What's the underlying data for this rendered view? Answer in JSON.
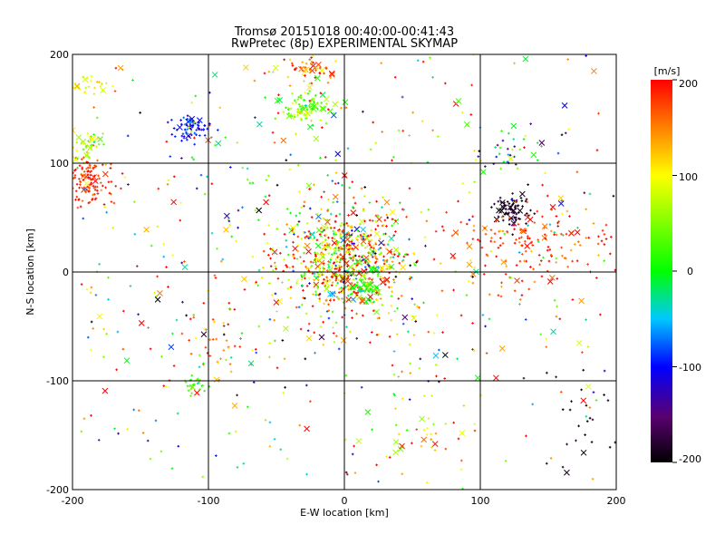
{
  "chart_data": {
    "type": "scatter",
    "title": "Tromsø 20151018 00:40:00-00:41:43",
    "subtitle": "RwPretec (8p) EXPERIMENTAL SKYMAP",
    "xlabel": "E-W location [km]",
    "ylabel": "N-S location [km]",
    "xlim": [
      -200,
      200
    ],
    "ylim": [
      -200,
      200
    ],
    "x_ticks": [
      "-200",
      "-100",
      "0",
      "100",
      "200"
    ],
    "y_ticks": [
      "-200",
      "-100",
      "0",
      "100",
      "200"
    ],
    "grid": true,
    "colorbar": {
      "label": "[m/s]",
      "range": [
        -200,
        200
      ],
      "ticks": [
        "200",
        "100",
        "0",
        "-100",
        "-200"
      ],
      "colormap": "rainbow (black=-200, blue=-100, green=0, yellow=100, red=200)"
    },
    "markers": [
      "+",
      "x"
    ],
    "clusters": [
      {
        "x": 0,
        "y": 10,
        "sx": 25,
        "sy": 25,
        "n": 700,
        "v": 110,
        "vs": 110
      },
      {
        "x": 15,
        "y": -15,
        "sx": 6,
        "sy": 5,
        "n": 60,
        "v": 10,
        "vs": 20
      },
      {
        "x": -30,
        "y": 152,
        "sx": 9,
        "sy": 7,
        "n": 90,
        "v": 40,
        "vs": 35
      },
      {
        "x": -30,
        "y": 185,
        "sx": 12,
        "sy": 8,
        "n": 60,
        "v": 150,
        "vs": 40
      },
      {
        "x": -113,
        "y": 133,
        "sx": 7,
        "sy": 6,
        "n": 70,
        "v": -100,
        "vs": 20
      },
      {
        "x": -187,
        "y": 85,
        "sx": 9,
        "sy": 12,
        "n": 120,
        "v": 185,
        "vs": 20
      },
      {
        "x": -190,
        "y": 118,
        "sx": 8,
        "sy": 8,
        "n": 50,
        "v": 60,
        "vs": 40
      },
      {
        "x": -190,
        "y": 173,
        "sx": 8,
        "sy": 5,
        "n": 25,
        "v": 100,
        "vs": 20
      },
      {
        "x": 123,
        "y": 57,
        "sx": 6,
        "sy": 8,
        "n": 80,
        "v": -190,
        "vs": 15
      },
      {
        "x": 140,
        "y": 25,
        "sx": 30,
        "sy": 18,
        "n": 160,
        "v": 180,
        "vs": 30
      },
      {
        "x": 125,
        "y": 115,
        "sx": 15,
        "sy": 10,
        "n": 35,
        "v": -60,
        "vs": 80
      },
      {
        "x": -110,
        "y": -105,
        "sx": 5,
        "sy": 4,
        "n": 25,
        "v": 20,
        "vs": 20
      },
      {
        "x": -90,
        "y": -70,
        "sx": 10,
        "sy": 15,
        "n": 30,
        "v": 170,
        "vs": 30
      },
      {
        "x": 60,
        "y": -150,
        "sx": 15,
        "sy": 15,
        "n": 30,
        "v": 120,
        "vs": 60
      },
      {
        "x": 175,
        "y": -130,
        "sx": 15,
        "sy": 25,
        "n": 25,
        "v": -190,
        "vs": 15
      },
      {
        "x": 0,
        "y": 0,
        "sx": 140,
        "sy": 110,
        "n": 750,
        "v": 60,
        "vs": 130
      }
    ]
  }
}
